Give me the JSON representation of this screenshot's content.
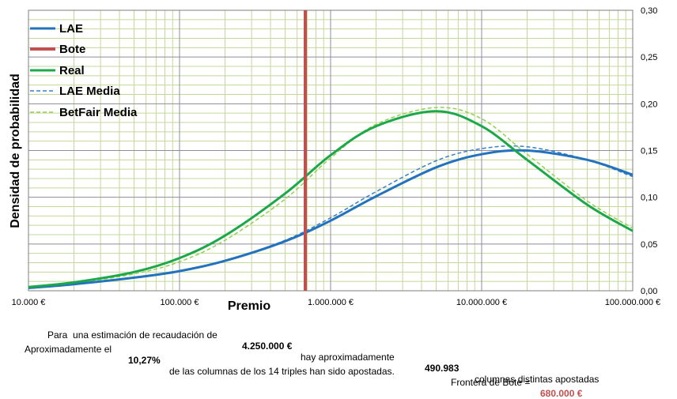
{
  "chart_data": {
    "type": "line",
    "xscale": "log",
    "xlabel": "Premio",
    "ylabel": "Densidad de probabilidad",
    "xlim": [
      10000,
      100000000
    ],
    "ylim": [
      0,
      0.3
    ],
    "x_ticks": [
      "10.000 €",
      "100.000 €",
      "1.000.000 €",
      "10.000.000 €",
      "100.000.000 €"
    ],
    "y_ticks": [
      "0,00",
      "0,05",
      "0,10",
      "0,15",
      "0,20",
      "0,25",
      "0,30"
    ],
    "grid": true,
    "legend_position": "top-left",
    "series": [
      {
        "name": "LAE",
        "color": "#2272bd",
        "style": "solid",
        "x": [
          10000,
          20000,
          50000,
          100000,
          200000,
          500000,
          1000000,
          2000000,
          5000000,
          10000000,
          20000000,
          50000000,
          100000000
        ],
        "y": [
          0.003,
          0.007,
          0.014,
          0.021,
          0.032,
          0.053,
          0.075,
          0.101,
          0.132,
          0.146,
          0.15,
          0.14,
          0.124
        ]
      },
      {
        "name": "Bote",
        "color": "#c0504d",
        "style": "vertical",
        "x_value": 680000
      },
      {
        "name": "Real",
        "color": "#1ca84a",
        "style": "solid",
        "x": [
          10000,
          20000,
          50000,
          100000,
          200000,
          500000,
          1000000,
          2000000,
          5000000,
          10000000,
          20000000,
          50000000,
          100000000
        ],
        "y": [
          0.004,
          0.009,
          0.02,
          0.035,
          0.059,
          0.104,
          0.145,
          0.176,
          0.192,
          0.176,
          0.14,
          0.092,
          0.064
        ]
      },
      {
        "name": "LAE Media",
        "color": "#3a7fc8",
        "style": "dashed",
        "x": [
          10000,
          20000,
          50000,
          100000,
          200000,
          500000,
          1000000,
          2000000,
          5000000,
          10000000,
          20000000,
          50000000,
          100000000
        ],
        "y": [
          0.003,
          0.007,
          0.014,
          0.021,
          0.032,
          0.054,
          0.078,
          0.106,
          0.139,
          0.152,
          0.154,
          0.14,
          0.122
        ]
      },
      {
        "name": "BetFair Media",
        "color": "#92d050",
        "style": "dashed",
        "x": [
          10000,
          20000,
          50000,
          100000,
          200000,
          500000,
          1000000,
          2000000,
          5000000,
          10000000,
          20000000,
          50000000,
          100000000
        ],
        "y": [
          0.003,
          0.008,
          0.018,
          0.031,
          0.054,
          0.098,
          0.142,
          0.178,
          0.196,
          0.184,
          0.146,
          0.096,
          0.067
        ]
      }
    ]
  },
  "footer": {
    "line1_prefix": "Para  una estimación de recaudación de",
    "line1_amount": "4.250.000 €",
    "line1_mid": "hay aproximadamente",
    "line1_count": "490.983",
    "line1_suffix": "columnas distintas apostadas",
    "line2_prefix": "Aproximadamente el",
    "line2_pct": "10,27%",
    "line2_mid": "de las columnas de los 14 triples han sido apostadas.",
    "line2_label": "Frontera de Bote =",
    "line2_value": "680.000 €"
  }
}
